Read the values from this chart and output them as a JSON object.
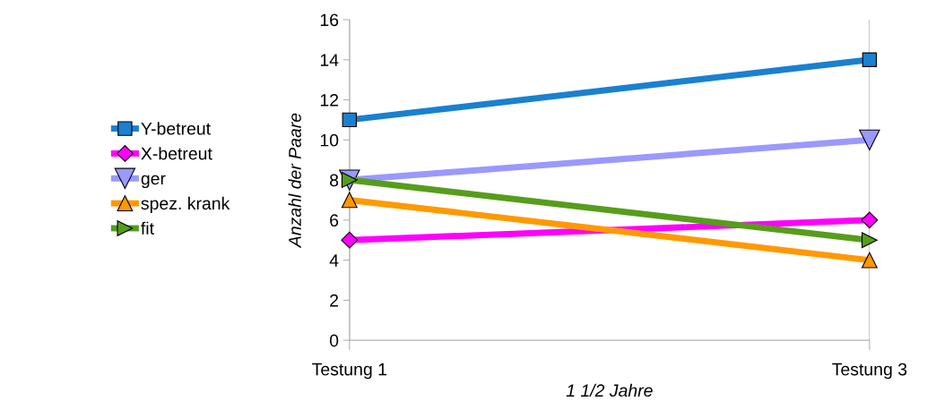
{
  "chart_data": {
    "type": "line",
    "xlabel": "1 1/2 Jahre",
    "ylabel": "Anzahl der Paare",
    "categories": [
      "Testung 1",
      "Testung 3"
    ],
    "series": [
      {
        "name": "Y-betreut",
        "color": "#1a80d0",
        "marker": "square",
        "values": [
          11,
          14
        ]
      },
      {
        "name": "X-betreut",
        "color": "#ff00ff",
        "marker": "diamond",
        "values": [
          5,
          6
        ]
      },
      {
        "name": "ger",
        "color": "#9999ff",
        "marker": "triangle-down",
        "values": [
          8,
          10
        ]
      },
      {
        "name": "spez. krank",
        "color": "#ff9900",
        "marker": "triangle",
        "values": [
          7,
          4
        ]
      },
      {
        "name": "fit",
        "color": "#579d1c",
        "marker": "triangle-right",
        "values": [
          8,
          5
        ]
      }
    ],
    "ylim": [
      0,
      16
    ],
    "yticks": [
      0,
      2,
      4,
      6,
      8,
      10,
      12,
      14,
      16
    ],
    "grid": "x",
    "legend": "left",
    "line_style": "solid"
  }
}
